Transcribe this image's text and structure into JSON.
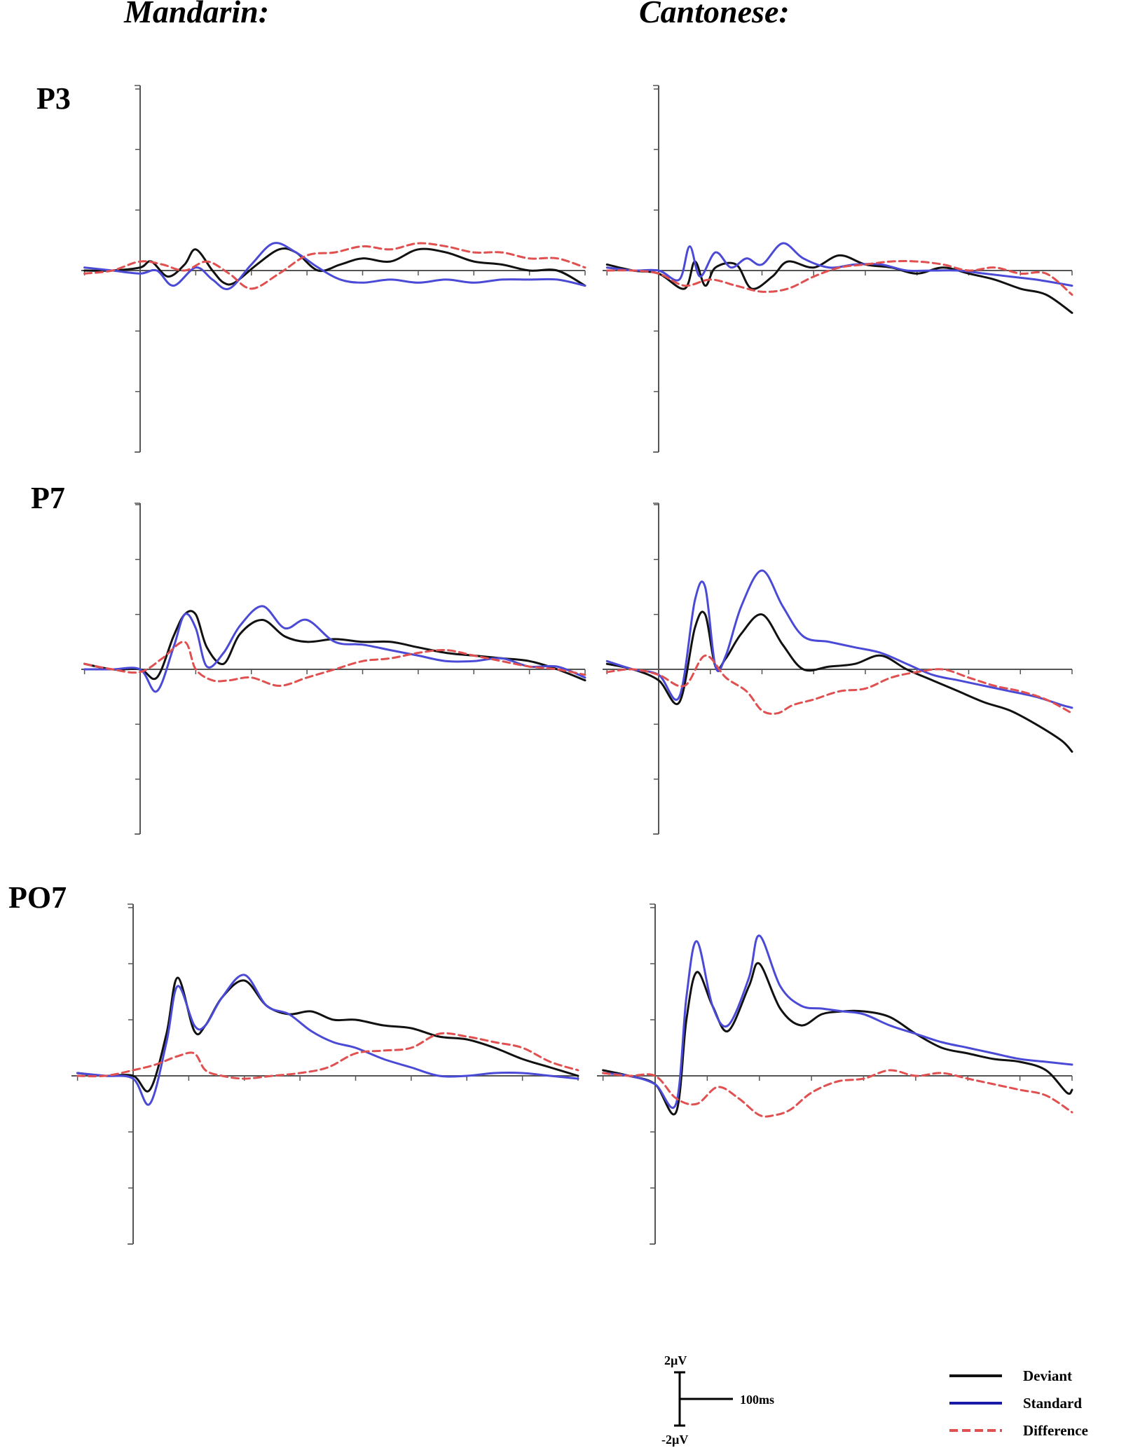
{
  "columns": [
    "Mandarin:",
    "Cantonese:"
  ],
  "rows": [
    "P3",
    "P7",
    "PO7"
  ],
  "legend": {
    "deviant": "Deviant",
    "standard": "Standard",
    "difference": "Difference"
  },
  "scale": {
    "top": "2µV",
    "bottom": "-2µV",
    "time": "100ms"
  },
  "colors": {
    "deviant": "#111111",
    "standard": "#4a4ad6",
    "difference": "#e05050"
  },
  "chart_data": {
    "type": "line",
    "x_unit": "ms",
    "y_unit": "µV",
    "xlim": [
      -100,
      800
    ],
    "panels": [
      {
        "language": "Mandarin",
        "electrode": "P3",
        "ylim": [
          -6,
          6
        ],
        "series": [
          {
            "name": "Deviant",
            "x": [
              -100,
              -50,
              0,
              20,
              50,
              80,
              100,
              130,
              150,
              170,
              210,
              250,
              280,
              320,
              360,
              400,
              450,
              500,
              550,
              600,
              650,
              700,
              750,
              800
            ],
            "y": [
              0,
              0,
              0.1,
              0.3,
              -0.2,
              0.2,
              0.7,
              0,
              -0.4,
              -0.4,
              0.2,
              0.7,
              0.6,
              0,
              0.2,
              0.4,
              0.3,
              0.7,
              0.6,
              0.3,
              0.2,
              0,
              0,
              -0.5
            ]
          },
          {
            "name": "Standard",
            "x": [
              -100,
              -50,
              0,
              30,
              60,
              100,
              130,
              160,
              200,
              240,
              280,
              320,
              360,
              400,
              450,
              500,
              550,
              600,
              650,
              700,
              750,
              800
            ],
            "y": [
              0.1,
              0,
              -0.1,
              0,
              -0.5,
              0.1,
              -0.3,
              -0.6,
              0.2,
              0.9,
              0.6,
              0.1,
              -0.3,
              -0.4,
              -0.3,
              -0.4,
              -0.3,
              -0.4,
              -0.3,
              -0.3,
              -0.3,
              -0.5
            ]
          },
          {
            "name": "Difference",
            "x": [
              -100,
              -50,
              0,
              40,
              80,
              120,
              160,
              200,
              250,
              300,
              350,
              400,
              450,
              500,
              550,
              600,
              650,
              700,
              750,
              800
            ],
            "y": [
              -0.1,
              0,
              0.3,
              0.2,
              0,
              0.3,
              -0.1,
              -0.6,
              -0.1,
              0.5,
              0.6,
              0.8,
              0.7,
              0.9,
              0.8,
              0.6,
              0.6,
              0.4,
              0.4,
              0.1
            ]
          }
        ]
      },
      {
        "language": "Cantonese",
        "electrode": "P3",
        "ylim": [
          -6,
          6
        ],
        "series": [
          {
            "name": "Deviant",
            "x": [
              -100,
              -50,
              0,
              50,
              70,
              90,
              110,
              150,
              180,
              220,
              250,
              300,
              350,
              400,
              450,
              500,
              550,
              600,
              650,
              700,
              750,
              800
            ],
            "y": [
              0.2,
              0,
              -0.1,
              -0.6,
              0.3,
              -0.5,
              0.1,
              0.2,
              -0.6,
              -0.2,
              0.3,
              0.1,
              0.5,
              0.2,
              0.1,
              -0.1,
              0.1,
              -0.1,
              -0.3,
              -0.6,
              -0.8,
              -1.4
            ]
          },
          {
            "name": "Standard",
            "x": [
              -100,
              -50,
              0,
              40,
              60,
              80,
              110,
              140,
              170,
              200,
              240,
              280,
              330,
              380,
              430,
              480,
              530,
              580,
              630,
              680,
              730,
              800
            ],
            "y": [
              0.1,
              0,
              0,
              -0.3,
              0.8,
              -0.2,
              0.6,
              0.1,
              0.4,
              0.2,
              0.9,
              0.4,
              0.1,
              0.2,
              0.2,
              0,
              0,
              0,
              -0.1,
              -0.2,
              -0.3,
              -0.5
            ]
          },
          {
            "name": "Difference",
            "x": [
              -100,
              -50,
              0,
              50,
              100,
              150,
              200,
              250,
              300,
              350,
              400,
              450,
              500,
              550,
              600,
              650,
              700,
              750,
              800
            ],
            "y": [
              0,
              0,
              -0.1,
              -0.5,
              -0.3,
              -0.5,
              -0.7,
              -0.6,
              -0.2,
              0.1,
              0.2,
              0.3,
              0.3,
              0.2,
              0,
              0.1,
              -0.1,
              -0.1,
              -0.8
            ]
          }
        ]
      },
      {
        "language": "Mandarin",
        "electrode": "P7",
        "ylim": [
          -6,
          6
        ],
        "series": [
          {
            "name": "Deviant",
            "x": [
              -100,
              -50,
              0,
              30,
              60,
              80,
              100,
              120,
              150,
              180,
              220,
              260,
              300,
              350,
              400,
              450,
              500,
              550,
              600,
              650,
              700,
              750,
              800
            ],
            "y": [
              0.2,
              0,
              0,
              -0.3,
              1.2,
              2.0,
              2.0,
              0.8,
              0.2,
              1.3,
              1.8,
              1.2,
              1.0,
              1.1,
              1.0,
              1.0,
              0.8,
              0.6,
              0.5,
              0.4,
              0.3,
              0,
              -0.4
            ]
          },
          {
            "name": "Standard",
            "x": [
              -100,
              -50,
              0,
              30,
              60,
              80,
              100,
              120,
              150,
              180,
              220,
              260,
              300,
              350,
              400,
              450,
              500,
              550,
              600,
              650,
              700,
              750,
              800
            ],
            "y": [
              0,
              0,
              0,
              -0.8,
              0.8,
              2.0,
              1.5,
              0.1,
              0.6,
              1.6,
              2.3,
              1.5,
              1.8,
              1.0,
              0.9,
              0.7,
              0.5,
              0.3,
              0.3,
              0.4,
              0.1,
              0.1,
              -0.3
            ]
          },
          {
            "name": "Difference",
            "x": [
              -100,
              -50,
              0,
              40,
              80,
              100,
              130,
              160,
              200,
              250,
              300,
              350,
              400,
              450,
              500,
              550,
              600,
              650,
              700,
              750,
              800
            ],
            "y": [
              0.2,
              0,
              -0.1,
              0.4,
              1.0,
              0,
              -0.4,
              -0.4,
              -0.3,
              -0.6,
              -0.3,
              0,
              0.3,
              0.4,
              0.6,
              0.7,
              0.5,
              0.3,
              0.1,
              0,
              -0.2
            ]
          }
        ]
      },
      {
        "language": "Cantonese",
        "electrode": "P7",
        "ylim": [
          -6,
          6
        ],
        "series": [
          {
            "name": "Deviant",
            "x": [
              -100,
              -50,
              0,
              40,
              70,
              90,
              110,
              130,
              160,
              200,
              240,
              280,
              330,
              380,
              430,
              480,
              530,
              580,
              630,
              680,
              730,
              780,
              800
            ],
            "y": [
              0.2,
              0,
              -0.4,
              -1.2,
              1.5,
              2.0,
              0.1,
              0.4,
              1.3,
              2.0,
              0.9,
              0,
              0.1,
              0.2,
              0.5,
              0,
              -0.4,
              -0.8,
              -1.2,
              -1.5,
              -2.0,
              -2.6,
              -3.0
            ]
          },
          {
            "name": "Standard",
            "x": [
              -100,
              -50,
              0,
              40,
              70,
              90,
              110,
              130,
              160,
              200,
              240,
              280,
              330,
              380,
              430,
              480,
              530,
              580,
              630,
              680,
              730,
              780,
              800
            ],
            "y": [
              0.3,
              0,
              -0.2,
              -1.0,
              2.5,
              3.0,
              0.1,
              0.5,
              2.3,
              3.6,
              2.3,
              1.2,
              1.0,
              0.8,
              0.6,
              0.2,
              -0.2,
              -0.4,
              -0.6,
              -0.8,
              -1.0,
              -1.3,
              -1.4
            ]
          },
          {
            "name": "Difference",
            "x": [
              -100,
              -50,
              0,
              50,
              90,
              130,
              170,
              200,
              230,
              260,
              300,
              350,
              400,
              450,
              500,
              550,
              600,
              650,
              700,
              750,
              800
            ],
            "y": [
              -0.1,
              0,
              -0.2,
              -0.6,
              0.5,
              -0.3,
              -0.8,
              -1.5,
              -1.6,
              -1.3,
              -1.1,
              -0.8,
              -0.7,
              -0.3,
              -0.1,
              0,
              -0.3,
              -0.6,
              -0.8,
              -1.1,
              -1.6
            ]
          }
        ]
      },
      {
        "language": "Mandarin",
        "electrode": "PO7",
        "ylim": [
          -6,
          6
        ],
        "series": [
          {
            "name": "Deviant",
            "x": [
              -100,
              -50,
              0,
              30,
              60,
              80,
              110,
              130,
              160,
              200,
              240,
              280,
              320,
              360,
              400,
              450,
              500,
              550,
              600,
              650,
              700,
              750,
              800
            ],
            "y": [
              0.1,
              0,
              0,
              -0.5,
              1.5,
              3.5,
              1.6,
              1.8,
              2.8,
              3.4,
              2.5,
              2.2,
              2.3,
              2.0,
              2.0,
              1.8,
              1.7,
              1.4,
              1.3,
              1.0,
              0.6,
              0.3,
              0
            ]
          },
          {
            "name": "Standard",
            "x": [
              -100,
              -50,
              0,
              30,
              60,
              80,
              110,
              130,
              160,
              200,
              240,
              280,
              320,
              360,
              400,
              450,
              500,
              550,
              600,
              650,
              700,
              750,
              800
            ],
            "y": [
              0.1,
              0,
              -0.1,
              -1.0,
              1.2,
              3.2,
              1.8,
              1.8,
              2.8,
              3.6,
              2.5,
              2.2,
              1.6,
              1.2,
              1.0,
              0.6,
              0.3,
              0,
              0,
              0.1,
              0.1,
              0,
              -0.1
            ]
          },
          {
            "name": "Difference",
            "x": [
              -100,
              -50,
              0,
              40,
              80,
              110,
              130,
              160,
              200,
              250,
              300,
              350,
              400,
              450,
              500,
              550,
              600,
              650,
              700,
              750,
              800
            ],
            "y": [
              0,
              0,
              0.2,
              0.4,
              0.7,
              0.8,
              0.2,
              0,
              -0.1,
              0,
              0.1,
              0.3,
              0.8,
              0.9,
              1.0,
              1.5,
              1.4,
              1.2,
              1.0,
              0.5,
              0.2
            ]
          }
        ]
      },
      {
        "language": "Cantonese",
        "electrode": "PO7",
        "ylim": [
          -6,
          6
        ],
        "series": [
          {
            "name": "Deviant",
            "x": [
              -100,
              -50,
              0,
              40,
              60,
              80,
              110,
              140,
              180,
              200,
              240,
              280,
              320,
              360,
              400,
              450,
              500,
              550,
              600,
              650,
              700,
              750,
              790,
              800
            ],
            "y": [
              0.2,
              0,
              -0.3,
              -1.3,
              2.0,
              3.7,
              2.5,
              1.6,
              3.2,
              4.0,
              2.4,
              1.8,
              2.2,
              2.3,
              2.3,
              2.1,
              1.5,
              1.0,
              0.8,
              0.6,
              0.5,
              0.2,
              -0.6,
              -0.5
            ]
          },
          {
            "name": "Standard",
            "x": [
              -100,
              -50,
              0,
              40,
              60,
              80,
              110,
              140,
              180,
              200,
              240,
              280,
              320,
              360,
              400,
              450,
              500,
              550,
              600,
              650,
              700,
              750,
              800
            ],
            "y": [
              0.1,
              0,
              -0.3,
              -1.0,
              2.8,
              4.8,
              2.5,
              1.8,
              3.5,
              5.0,
              3.2,
              2.5,
              2.4,
              2.3,
              2.2,
              1.8,
              1.5,
              1.2,
              1.0,
              0.8,
              0.6,
              0.5,
              0.4
            ]
          },
          {
            "name": "Difference",
            "x": [
              -100,
              -50,
              0,
              40,
              80,
              120,
              160,
              200,
              230,
              260,
              300,
              350,
              400,
              450,
              500,
              550,
              600,
              650,
              700,
              750,
              800
            ],
            "y": [
              0.1,
              0,
              0,
              -0.8,
              -1.0,
              -0.4,
              -0.8,
              -1.4,
              -1.4,
              -1.2,
              -0.6,
              -0.2,
              -0.1,
              0.2,
              0,
              0.1,
              -0.1,
              -0.3,
              -0.5,
              -0.7,
              -1.3
            ]
          }
        ]
      }
    ]
  }
}
